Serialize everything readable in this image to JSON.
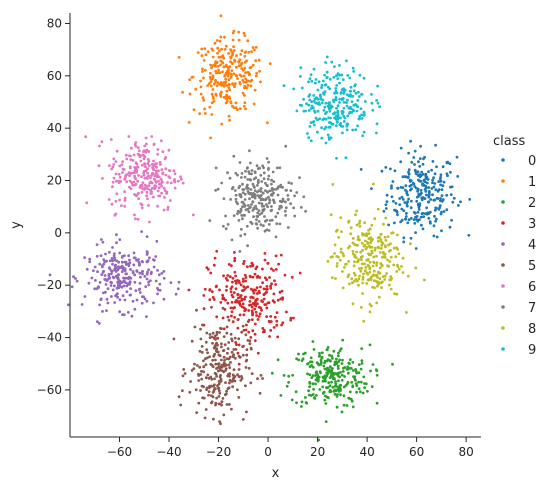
{
  "chart_data": {
    "type": "scatter",
    "title": "",
    "xlabel": "x",
    "ylabel": "y",
    "xlim": [
      -80,
      86
    ],
    "ylim": [
      -78,
      84
    ],
    "xticks": [
      -60,
      -40,
      -20,
      0,
      20,
      40,
      60,
      80
    ],
    "yticks": [
      -60,
      -40,
      -20,
      0,
      20,
      40,
      60,
      80
    ],
    "grid": false,
    "legend": {
      "title": "class",
      "placement": "right"
    },
    "series": [
      {
        "name": "0",
        "color": "#1f77b4",
        "cluster": {
          "cx": 62,
          "cy": 15,
          "sx": 7,
          "sy": 8
        },
        "n": 260
      },
      {
        "name": "1",
        "color": "#ff7f0e",
        "cluster": {
          "cx": -16,
          "cy": 60,
          "sx": 7,
          "sy": 7
        },
        "n": 260
      },
      {
        "name": "2",
        "color": "#2ca02c",
        "cluster": {
          "cx": 25,
          "cy": -55,
          "sx": 8,
          "sy": 6
        },
        "n": 260
      },
      {
        "name": "3",
        "color": "#d62728",
        "cluster": {
          "cx": -8,
          "cy": -25,
          "sx": 8,
          "sy": 8
        },
        "n": 260
      },
      {
        "name": "4",
        "color": "#9467bd",
        "cluster": {
          "cx": -58,
          "cy": -17,
          "sx": 8,
          "sy": 6
        },
        "n": 260
      },
      {
        "name": "5",
        "color": "#8c564b",
        "cluster": {
          "cx": -20,
          "cy": -52,
          "sx": 6,
          "sy": 9
        },
        "n": 260
      },
      {
        "name": "6",
        "color": "#e377c2",
        "cluster": {
          "cx": -50,
          "cy": 22,
          "sx": 7,
          "sy": 7
        },
        "n": 260
      },
      {
        "name": "7",
        "color": "#7f7f7f",
        "cluster": {
          "cx": -4,
          "cy": 14,
          "sx": 7,
          "sy": 7
        },
        "n": 260
      },
      {
        "name": "8",
        "color": "#bcbd22",
        "cluster": {
          "cx": 40,
          "cy": -10,
          "sx": 7,
          "sy": 8
        },
        "n": 260
      },
      {
        "name": "9",
        "color": "#17becf",
        "cluster": {
          "cx": 27,
          "cy": 50,
          "sx": 7,
          "sy": 7
        },
        "n": 260
      }
    ]
  }
}
